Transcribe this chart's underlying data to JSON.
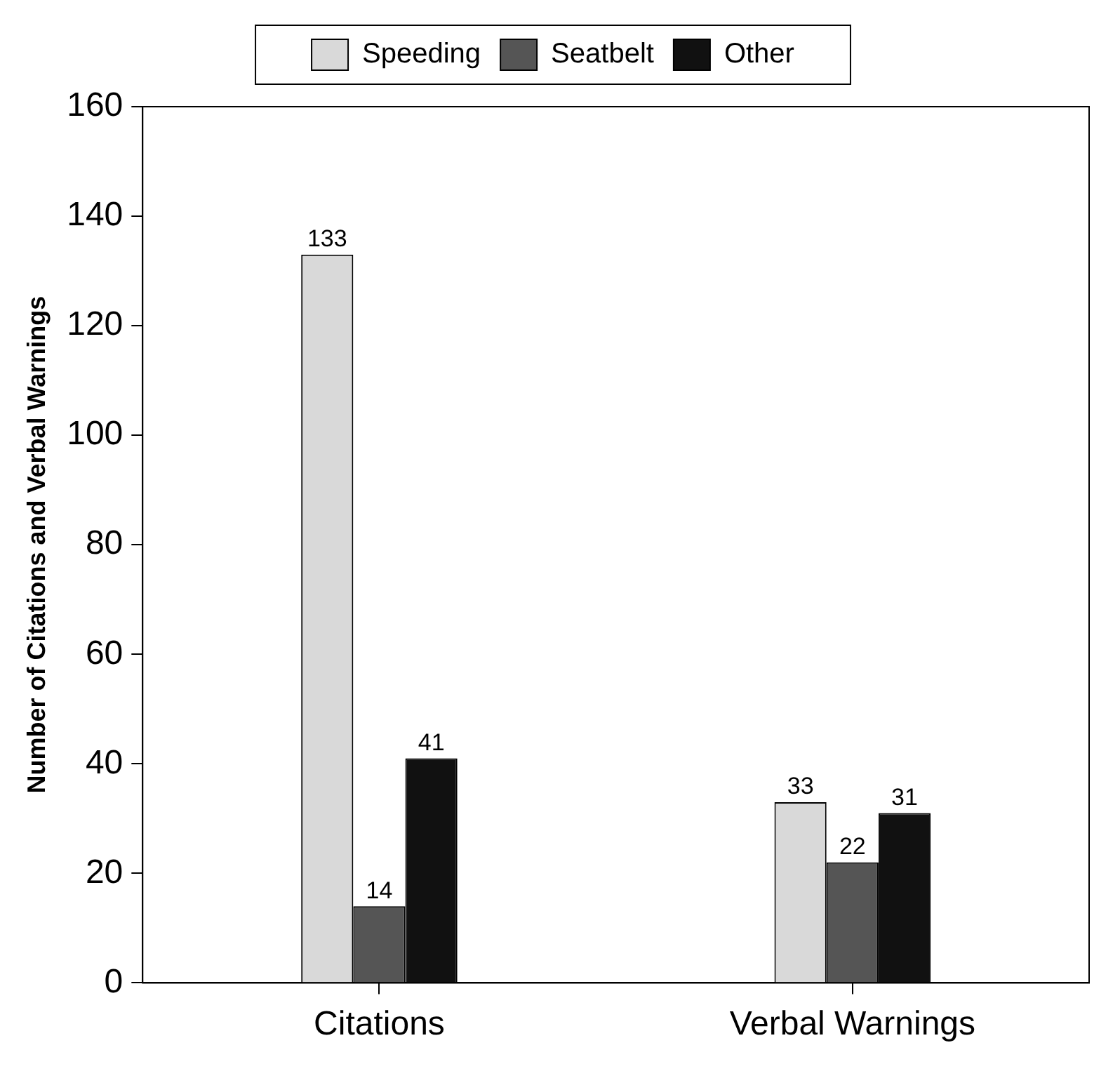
{
  "chart_data": {
    "type": "bar",
    "ylabel": "Number of Citations and Verbal Warnings",
    "categories": [
      "Citations",
      "Verbal Warnings"
    ],
    "series": [
      {
        "name": "Speeding",
        "color": "#d9d9d9",
        "values": [
          133,
          33
        ]
      },
      {
        "name": "Seatbelt",
        "color": "#555555",
        "values": [
          14,
          22
        ]
      },
      {
        "name": "Other",
        "color": "#111111",
        "values": [
          41,
          31
        ]
      }
    ],
    "ylim": [
      0,
      160
    ],
    "yticks": [
      0,
      20,
      40,
      60,
      80,
      100,
      120,
      140,
      160
    ],
    "grid": false,
    "legend": "top",
    "data_labels": true
  }
}
